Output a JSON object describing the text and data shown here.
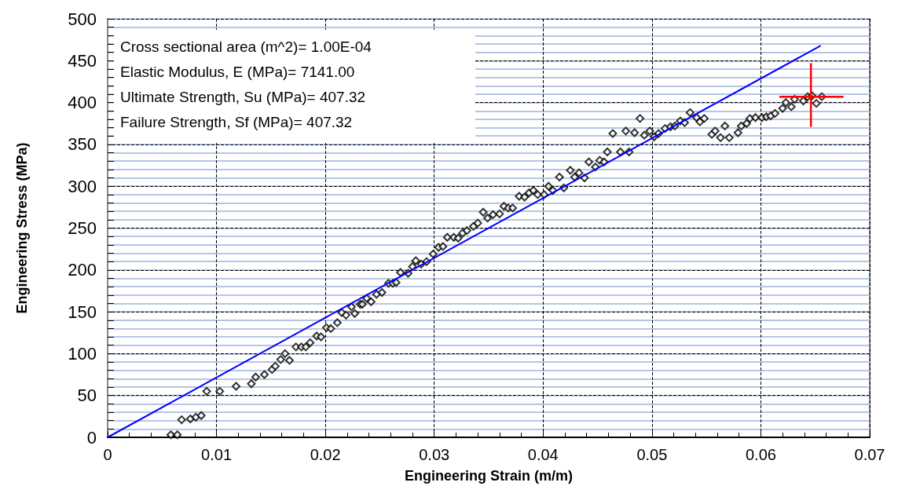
{
  "chart_data": {
    "type": "scatter",
    "xlabel": "Engineering Strain (m/m)",
    "ylabel": "Engineering Stress (MPa)",
    "xlim": [
      0,
      0.07
    ],
    "xticks": [
      0,
      0.01,
      0.02,
      0.03,
      0.04,
      0.05,
      0.06,
      0.07
    ],
    "ylim": [
      0,
      500
    ],
    "yticks": [
      0,
      {
        "value": 10,
        "label": null
      },
      {
        "value": 20,
        "label": null
      },
      {
        "value": 30,
        "label": null
      },
      {
        "value": 40,
        "label": null
      },
      50,
      {
        "value": 60,
        "label": null
      },
      {
        "value": 70,
        "label": null
      },
      {
        "value": 80,
        "label": null
      },
      {
        "value": 90,
        "label": null
      },
      100,
      {
        "value": 110,
        "label": null
      },
      {
        "value": 120,
        "label": null
      },
      {
        "value": 130,
        "label": null
      },
      {
        "value": 140,
        "label": null
      },
      150,
      {
        "value": 160,
        "label": null
      },
      {
        "value": 170,
        "label": null
      },
      {
        "value": 180,
        "label": null
      },
      {
        "value": 190,
        "label": null
      },
      200,
      {
        "value": 210,
        "label": null
      },
      {
        "value": 220,
        "label": null
      },
      {
        "value": 230,
        "label": null
      },
      {
        "value": 240,
        "label": null
      },
      250,
      {
        "value": 260,
        "label": null
      },
      {
        "value": 270,
        "label": null
      },
      {
        "value": 280,
        "label": null
      },
      {
        "value": 290,
        "label": null
      },
      300,
      {
        "value": 310,
        "label": null
      },
      {
        "value": 320,
        "label": null
      },
      {
        "value": 330,
        "label": null
      },
      {
        "value": 340,
        "label": null
      },
      350,
      {
        "value": 360,
        "label": null
      },
      {
        "value": 370,
        "label": null
      },
      {
        "value": 380,
        "label": null
      },
      {
        "value": 390,
        "label": null
      },
      400,
      {
        "value": 410,
        "label": null
      },
      {
        "value": 420,
        "label": null
      },
      {
        "value": 430,
        "label": null
      },
      {
        "value": 440,
        "label": null
      },
      450,
      {
        "value": 460,
        "label": null
      },
      {
        "value": 470,
        "label": null
      },
      {
        "value": 480,
        "label": null
      },
      {
        "value": 490,
        "label": null
      },
      500
    ],
    "grid": true,
    "annotations": [
      "Cross sectional area (m^2)= 1.00E-04",
      "Elastic Modulus, E (MPa)= 7141.00",
      "Ultimate Strength, Su (MPa)= 407.32",
      "Failure Strength, Sf (MPa)= 407.32"
    ],
    "series": [
      {
        "marker": "diamond",
        "color": "#000000",
        "x": [
          0.0058,
          0.0064,
          0.0068,
          0.0076,
          0.0081,
          0.0086,
          0.0091,
          0.0103,
          0.0118,
          0.0132,
          0.0136,
          0.0144,
          0.0151,
          0.0154,
          0.0159,
          0.0163,
          0.0167,
          0.0173,
          0.0178,
          0.0182,
          0.0186,
          0.0192,
          0.0196,
          0.0201,
          0.0205,
          0.0211,
          0.0215,
          0.0219,
          0.0224,
          0.0227,
          0.0232,
          0.0234,
          0.0238,
          0.0242,
          0.0247,
          0.0252,
          0.0258,
          0.0262,
          0.0265,
          0.0269,
          0.0276,
          0.028,
          0.0283,
          0.0288,
          0.0293,
          0.0299,
          0.0304,
          0.0308,
          0.0312,
          0.0318,
          0.0322,
          0.0326,
          0.033,
          0.0336,
          0.034,
          0.0345,
          0.0349,
          0.0354,
          0.036,
          0.0364,
          0.0368,
          0.0372,
          0.0378,
          0.0383,
          0.0387,
          0.0391,
          0.0395,
          0.0401,
          0.0405,
          0.0409,
          0.0415,
          0.0419,
          0.0425,
          0.0429,
          0.0433,
          0.0438,
          0.0442,
          0.0448,
          0.0452,
          0.0456,
          0.0459,
          0.0464,
          0.0471,
          0.0476,
          0.0479,
          0.0484,
          0.0489,
          0.0493,
          0.0498,
          0.0502,
          0.0506,
          0.0512,
          0.0517,
          0.0521,
          0.0526,
          0.053,
          0.0535,
          0.0541,
          0.0544,
          0.0548,
          0.0555,
          0.0558,
          0.0563,
          0.0567,
          0.0571,
          0.0579,
          0.0582,
          0.0587,
          0.059,
          0.0595,
          0.0601,
          0.0605,
          0.0609,
          0.0613,
          0.062,
          0.0623,
          0.0628,
          0.0631,
          0.0639,
          0.0643,
          0.0647,
          0.0651,
          0.0656
        ],
        "values": [
          3,
          3,
          21,
          22,
          24,
          26,
          55,
          55,
          61,
          64,
          72,
          75,
          81,
          85,
          93,
          100,
          92,
          108,
          108,
          108,
          113,
          121,
          120,
          131,
          130,
          137,
          149,
          146,
          156,
          148,
          159,
          159,
          166,
          162,
          171,
          173,
          184,
          184,
          185,
          197,
          196,
          204,
          211,
          207,
          210,
          219,
          227,
          228,
          239,
          239,
          238,
          244,
          247,
          252,
          256,
          269,
          262,
          266,
          267,
          276,
          274,
          274,
          288,
          287,
          292,
          295,
          290,
          290,
          300,
          295,
          311,
          298,
          319,
          311,
          316,
          310,
          329,
          323,
          331,
          329,
          341,
          363,
          341,
          366,
          341,
          364,
          381,
          361,
          366,
          359,
          363,
          369,
          371,
          372,
          378,
          376,
          388,
          382,
          377,
          381,
          362,
          366,
          358,
          372,
          358,
          364,
          372,
          375,
          381,
          382,
          382,
          383,
          384,
          387,
          393,
          400,
          395,
          404,
          402,
          407,
          408,
          399,
          407
        ]
      },
      {
        "type": "line",
        "marker": "none",
        "color": "#0000ff",
        "x": [
          0,
          0.0655
        ],
        "values": [
          0,
          468
        ]
      },
      {
        "marker": "circle",
        "color": "#ff0000",
        "x": [
          0.0646
        ],
        "values": [
          407
        ],
        "errors": [
          [
            371,
            447
          ]
        ],
        "xerrors": [
          [
            0.0617,
            0.0676
          ]
        ]
      }
    ]
  }
}
